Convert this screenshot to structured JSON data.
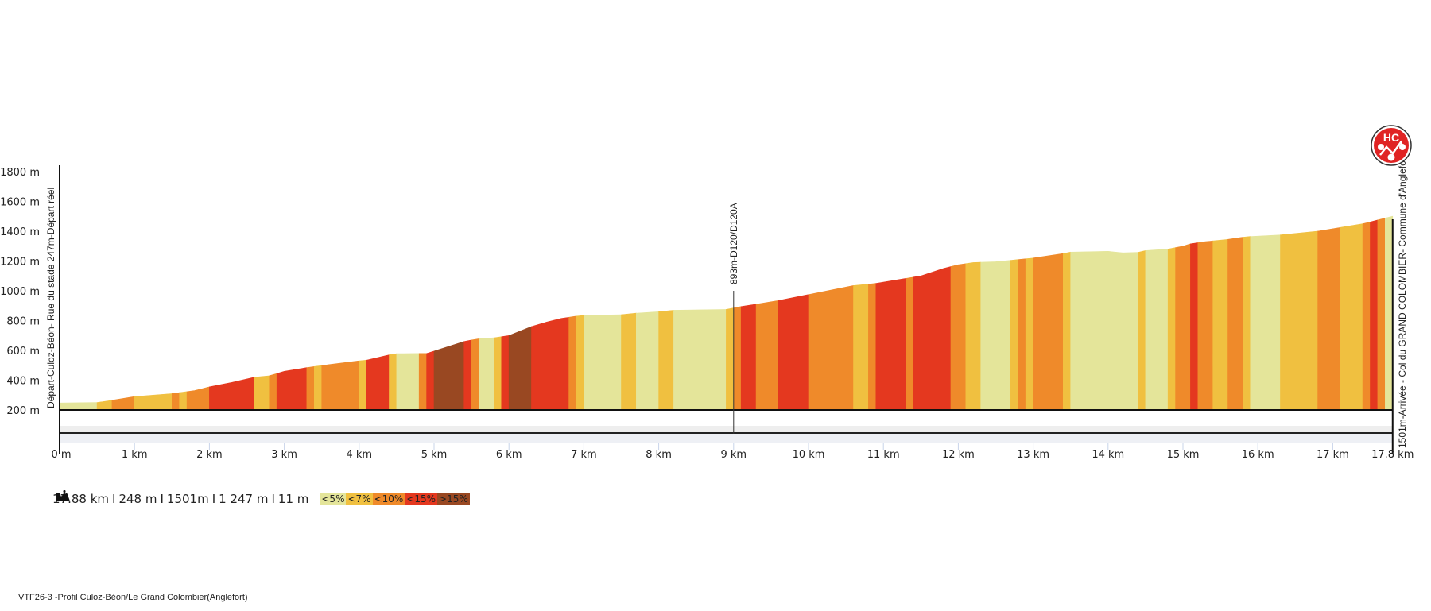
{
  "chart_data": {
    "type": "area",
    "title": "VTF26-3 -Profil Culoz-Béon/Le  Grand Colombier(Anglefort)",
    "xlabel": "",
    "ylabel": "",
    "xlim": [
      0,
      17.8
    ],
    "ylim": [
      200,
      1800
    ],
    "y_ticks": [
      "200 m",
      "400 m",
      "600 m",
      "800 m",
      "1000 m",
      "1200 m",
      "1400 m",
      "1600 m",
      "1800 m"
    ],
    "y_tick_values": [
      200,
      400,
      600,
      800,
      1000,
      1200,
      1400,
      1600,
      1800
    ],
    "x_ticks": [
      "0 m",
      "1 km",
      "2 km",
      "3 km",
      "4 km",
      "5 km",
      "6 km",
      "7 km",
      "8 km",
      "9 km",
      "10 km",
      "11 km",
      "12 km",
      "13 km",
      "14 km",
      "15 km",
      "16 km",
      "17 km",
      "17.8 km"
    ],
    "x_tick_values": [
      0,
      1,
      2,
      3,
      4,
      5,
      6,
      7,
      8,
      9,
      10,
      11,
      12,
      13,
      14,
      15,
      16,
      17,
      17.8
    ],
    "grade_colors": {
      "c1": "#e4e59a",
      "c2": "#f0c040",
      "c3": "#ef8a2a",
      "c4": "#e4381f",
      "c5": "#994822"
    },
    "profile": [
      [
        0,
        247
      ],
      [
        0.5,
        250
      ],
      [
        0.7,
        265
      ],
      [
        1.0,
        290
      ],
      [
        1.5,
        310
      ],
      [
        1.8,
        330
      ],
      [
        2.0,
        355
      ],
      [
        2.3,
        385
      ],
      [
        2.6,
        420
      ],
      [
        2.8,
        430
      ],
      [
        3.0,
        460
      ],
      [
        3.3,
        485
      ],
      [
        3.6,
        505
      ],
      [
        4.0,
        530
      ],
      [
        4.1,
        535
      ],
      [
        4.4,
        570
      ],
      [
        4.5,
        578
      ],
      [
        4.9,
        580
      ],
      [
        5.0,
        595
      ],
      [
        5.4,
        660
      ],
      [
        5.5,
        670
      ],
      [
        5.6,
        678
      ],
      [
        5.8,
        685
      ],
      [
        6.0,
        700
      ],
      [
        6.3,
        760
      ],
      [
        6.5,
        790
      ],
      [
        6.7,
        815
      ],
      [
        6.9,
        830
      ],
      [
        7.0,
        835
      ],
      [
        7.5,
        840
      ],
      [
        7.7,
        850
      ],
      [
        8.0,
        860
      ],
      [
        8.2,
        870
      ],
      [
        8.9,
        875
      ],
      [
        9.0,
        885
      ],
      [
        9.1,
        895
      ],
      [
        9.3,
        910
      ],
      [
        9.6,
        935
      ],
      [
        10.0,
        975
      ],
      [
        10.6,
        1035
      ],
      [
        10.8,
        1045
      ],
      [
        10.9,
        1050
      ],
      [
        11.5,
        1100
      ],
      [
        11.8,
        1150
      ],
      [
        12.0,
        1175
      ],
      [
        12.2,
        1190
      ],
      [
        12.5,
        1195
      ],
      [
        12.7,
        1205
      ],
      [
        12.8,
        1210
      ],
      [
        13.0,
        1220
      ],
      [
        13.4,
        1250
      ],
      [
        13.5,
        1260
      ],
      [
        14.0,
        1265
      ],
      [
        14.2,
        1255
      ],
      [
        14.4,
        1258
      ],
      [
        14.5,
        1270
      ],
      [
        14.8,
        1280
      ],
      [
        15.0,
        1300
      ],
      [
        15.1,
        1315
      ],
      [
        15.3,
        1330
      ],
      [
        15.6,
        1345
      ],
      [
        15.8,
        1360
      ],
      [
        15.9,
        1365
      ],
      [
        16.3,
        1375
      ],
      [
        16.8,
        1400
      ],
      [
        17.1,
        1425
      ],
      [
        17.4,
        1450
      ],
      [
        17.5,
        1462
      ],
      [
        17.6,
        1475
      ],
      [
        17.8,
        1501
      ]
    ],
    "segments": [
      {
        "from": 0.0,
        "to": 0.5,
        "grade": "c1"
      },
      {
        "from": 0.5,
        "to": 0.7,
        "grade": "c2"
      },
      {
        "from": 0.7,
        "to": 1.0,
        "grade": "c3"
      },
      {
        "from": 1.0,
        "to": 1.5,
        "grade": "c2"
      },
      {
        "from": 1.5,
        "to": 1.6,
        "grade": "c3"
      },
      {
        "from": 1.6,
        "to": 1.7,
        "grade": "c2"
      },
      {
        "from": 1.7,
        "to": 2.0,
        "grade": "c3"
      },
      {
        "from": 2.0,
        "to": 2.6,
        "grade": "c4"
      },
      {
        "from": 2.6,
        "to": 2.8,
        "grade": "c2"
      },
      {
        "from": 2.8,
        "to": 2.9,
        "grade": "c3"
      },
      {
        "from": 2.9,
        "to": 3.3,
        "grade": "c4"
      },
      {
        "from": 3.3,
        "to": 3.4,
        "grade": "c3"
      },
      {
        "from": 3.4,
        "to": 3.5,
        "grade": "c2"
      },
      {
        "from": 3.5,
        "to": 4.0,
        "grade": "c3"
      },
      {
        "from": 4.0,
        "to": 4.1,
        "grade": "c2"
      },
      {
        "from": 4.1,
        "to": 4.4,
        "grade": "c4"
      },
      {
        "from": 4.4,
        "to": 4.5,
        "grade": "c2"
      },
      {
        "from": 4.5,
        "to": 4.8,
        "grade": "c1"
      },
      {
        "from": 4.8,
        "to": 4.9,
        "grade": "c3"
      },
      {
        "from": 4.9,
        "to": 5.0,
        "grade": "c4"
      },
      {
        "from": 5.0,
        "to": 5.4,
        "grade": "c5"
      },
      {
        "from": 5.4,
        "to": 5.5,
        "grade": "c4"
      },
      {
        "from": 5.5,
        "to": 5.6,
        "grade": "c3"
      },
      {
        "from": 5.6,
        "to": 5.8,
        "grade": "c1"
      },
      {
        "from": 5.8,
        "to": 5.9,
        "grade": "c2"
      },
      {
        "from": 5.9,
        "to": 6.0,
        "grade": "c4"
      },
      {
        "from": 6.0,
        "to": 6.3,
        "grade": "c5"
      },
      {
        "from": 6.3,
        "to": 6.8,
        "grade": "c4"
      },
      {
        "from": 6.8,
        "to": 6.9,
        "grade": "c3"
      },
      {
        "from": 6.9,
        "to": 7.0,
        "grade": "c2"
      },
      {
        "from": 7.0,
        "to": 7.5,
        "grade": "c1"
      },
      {
        "from": 7.5,
        "to": 7.7,
        "grade": "c2"
      },
      {
        "from": 7.7,
        "to": 8.0,
        "grade": "c1"
      },
      {
        "from": 8.0,
        "to": 8.2,
        "grade": "c2"
      },
      {
        "from": 8.2,
        "to": 8.9,
        "grade": "c1"
      },
      {
        "from": 8.9,
        "to": 9.0,
        "grade": "c2"
      },
      {
        "from": 9.0,
        "to": 9.1,
        "grade": "c3"
      },
      {
        "from": 9.1,
        "to": 9.3,
        "grade": "c4"
      },
      {
        "from": 9.3,
        "to": 9.6,
        "grade": "c3"
      },
      {
        "from": 9.6,
        "to": 10.0,
        "grade": "c4"
      },
      {
        "from": 10.0,
        "to": 10.6,
        "grade": "c3"
      },
      {
        "from": 10.6,
        "to": 10.8,
        "grade": "c2"
      },
      {
        "from": 10.8,
        "to": 10.9,
        "grade": "c3"
      },
      {
        "from": 10.9,
        "to": 11.3,
        "grade": "c4"
      },
      {
        "from": 11.3,
        "to": 11.4,
        "grade": "c3"
      },
      {
        "from": 11.4,
        "to": 11.9,
        "grade": "c4"
      },
      {
        "from": 11.9,
        "to": 12.1,
        "grade": "c3"
      },
      {
        "from": 12.1,
        "to": 12.3,
        "grade": "c2"
      },
      {
        "from": 12.3,
        "to": 12.7,
        "grade": "c1"
      },
      {
        "from": 12.7,
        "to": 12.8,
        "grade": "c2"
      },
      {
        "from": 12.8,
        "to": 12.9,
        "grade": "c3"
      },
      {
        "from": 12.9,
        "to": 13.0,
        "grade": "c2"
      },
      {
        "from": 13.0,
        "to": 13.4,
        "grade": "c3"
      },
      {
        "from": 13.4,
        "to": 13.5,
        "grade": "c2"
      },
      {
        "from": 13.5,
        "to": 14.4,
        "grade": "c1"
      },
      {
        "from": 14.4,
        "to": 14.5,
        "grade": "c2"
      },
      {
        "from": 14.5,
        "to": 14.8,
        "grade": "c1"
      },
      {
        "from": 14.8,
        "to": 14.9,
        "grade": "c2"
      },
      {
        "from": 14.9,
        "to": 15.1,
        "grade": "c3"
      },
      {
        "from": 15.1,
        "to": 15.2,
        "grade": "c4"
      },
      {
        "from": 15.2,
        "to": 15.4,
        "grade": "c3"
      },
      {
        "from": 15.4,
        "to": 15.6,
        "grade": "c2"
      },
      {
        "from": 15.6,
        "to": 15.8,
        "grade": "c3"
      },
      {
        "from": 15.8,
        "to": 15.9,
        "grade": "c2"
      },
      {
        "from": 15.9,
        "to": 16.3,
        "grade": "c1"
      },
      {
        "from": 16.3,
        "to": 16.8,
        "grade": "c2"
      },
      {
        "from": 16.8,
        "to": 17.1,
        "grade": "c3"
      },
      {
        "from": 17.1,
        "to": 17.4,
        "grade": "c2"
      },
      {
        "from": 17.4,
        "to": 17.5,
        "grade": "c3"
      },
      {
        "from": 17.5,
        "to": 17.6,
        "grade": "c4"
      },
      {
        "from": 17.6,
        "to": 17.7,
        "grade": "c3"
      },
      {
        "from": 17.7,
        "to": 17.8,
        "grade": "c1"
      }
    ],
    "annotations": {
      "start": "Départ-Culoz-Béon- Rue du stade   247m-Départ réel",
      "mid": "893m-D120/D120A",
      "mid_km": 9.0,
      "finish": "1501m-Arrivée - Col du GRAND COLOMBIER- Commune d'Anglefort",
      "badge": "HC"
    }
  },
  "stats": {
    "distance": "17.88 km",
    "min_alt": "248 m",
    "max_alt": "1501m",
    "ascent": "1 247 m",
    "descent": "11 m"
  },
  "legend": [
    {
      "label": "<5%",
      "color": "#e4e59a"
    },
    {
      "label": "<7%",
      "color": "#f0c040"
    },
    {
      "label": "<10%",
      "color": "#ef8a2a"
    },
    {
      "label": "<15%",
      "color": "#e4381f"
    },
    {
      "label": ">15%",
      "color": "#994822"
    }
  ],
  "footer": "VTF26-3 -Profil Culoz-Béon/Le  Grand Colombier(Anglefort)"
}
